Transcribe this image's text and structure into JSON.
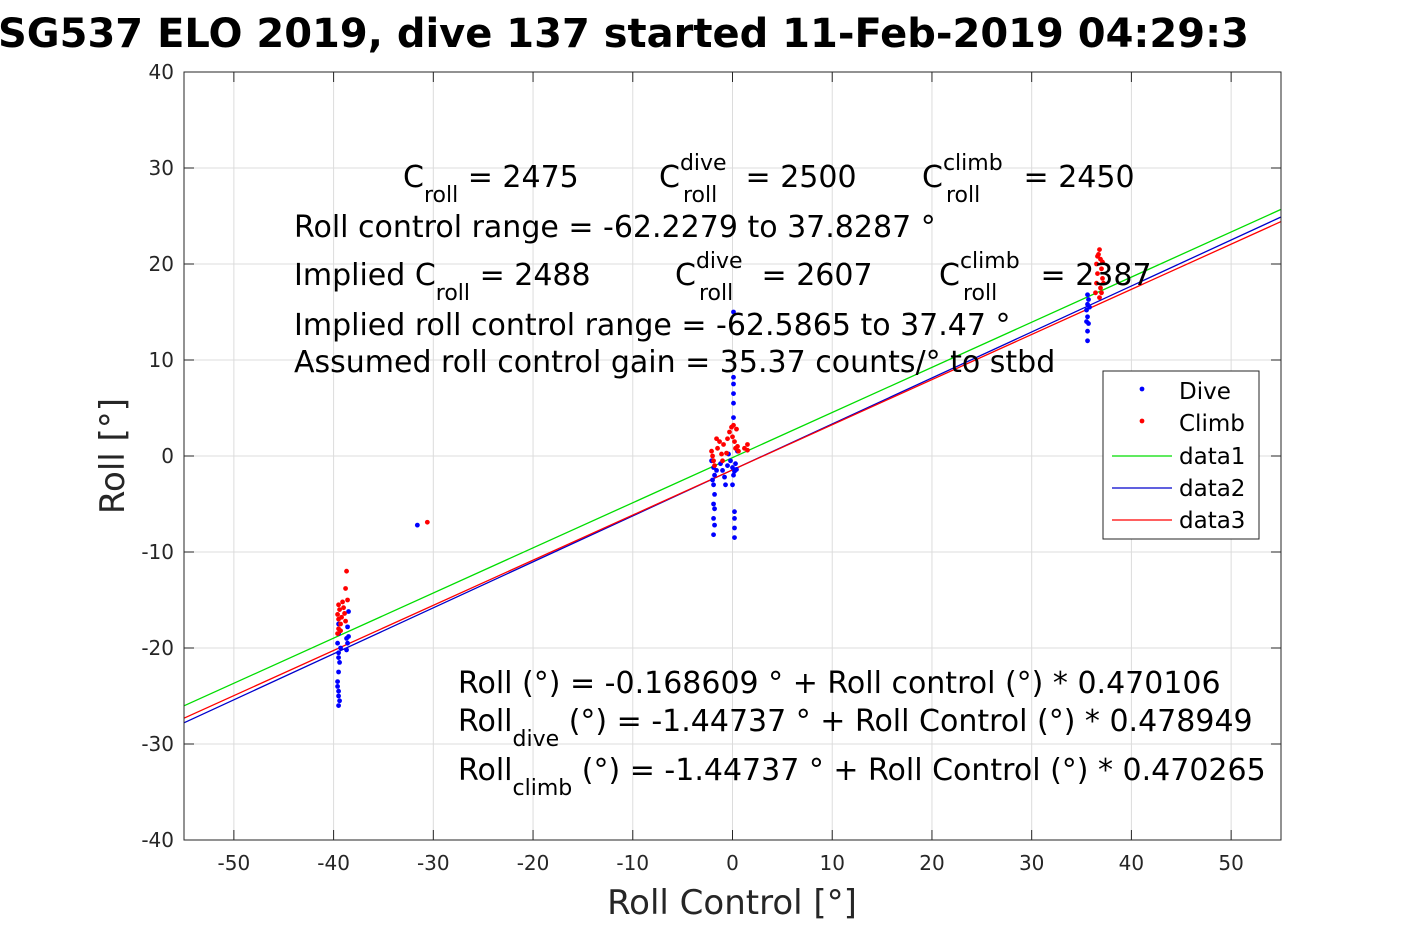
{
  "chart_data": {
    "type": "scatter",
    "title": "SG537 ELO 2019, dive 137 started 11-Feb-2019 04:29:3",
    "xlabel": "Roll Control [°]",
    "ylabel": "Roll [°]",
    "xlim": [
      -55,
      55
    ],
    "ylim": [
      -40,
      40
    ],
    "x_ticks": [
      -50,
      -40,
      -30,
      -20,
      -10,
      0,
      10,
      20,
      30,
      40,
      50
    ],
    "y_ticks": [
      -40,
      -30,
      -20,
      -10,
      0,
      10,
      20,
      30,
      40
    ],
    "grid": true,
    "legend_position": "right",
    "legend": [
      "Dive",
      "Climb",
      "data1",
      "data2",
      "data3"
    ],
    "colors": {
      "dive": "#0000ff",
      "climb": "#ff0000",
      "data1": "#00dd00",
      "data2": "#0000cc",
      "data3": "#ff0000",
      "axes": "#262626",
      "grid": "#dcdcdc"
    },
    "series": [
      {
        "name": "Dive",
        "kind": "points",
        "points": [
          [
            -39.5,
            -17.5
          ],
          [
            -39.5,
            -18.5
          ],
          [
            -39.6,
            -19.5
          ],
          [
            -39.5,
            -20.5
          ],
          [
            -39.4,
            -21.5
          ],
          [
            -39.5,
            -22.5
          ],
          [
            -39.6,
            -23.5
          ],
          [
            -39.5,
            -24.5
          ],
          [
            -39.5,
            -25.0
          ],
          [
            -39.4,
            -25.5
          ],
          [
            -39.5,
            -26.0
          ],
          [
            -39.6,
            -24.0
          ],
          [
            -39.3,
            -20.0
          ],
          [
            -39.5,
            -21.0
          ],
          [
            -38.6,
            -19.5
          ],
          [
            -38.5,
            -18.8
          ],
          [
            -38.7,
            -20.2
          ],
          [
            -38.6,
            -17.8
          ],
          [
            -38.5,
            -16.2
          ],
          [
            -38.7,
            -19.0
          ],
          [
            -31.6,
            -7.2
          ],
          [
            -1.9,
            -1.2
          ],
          [
            -1.8,
            -2.0
          ],
          [
            -1.9,
            -3.0
          ],
          [
            -1.8,
            -4.0
          ],
          [
            -1.9,
            -5.0
          ],
          [
            -1.8,
            -5.5
          ],
          [
            -1.9,
            -6.5
          ],
          [
            -1.8,
            -7.2
          ],
          [
            -1.9,
            -8.2
          ],
          [
            -2.1,
            -0.5
          ],
          [
            -1.6,
            -1.5
          ],
          [
            -2.0,
            -2.5
          ],
          [
            -1.2,
            -0.8
          ],
          [
            -1.0,
            -1.5
          ],
          [
            -0.8,
            -2.2
          ],
          [
            -0.7,
            -3.0
          ],
          [
            -0.5,
            -1.0
          ],
          [
            -0.2,
            -0.5
          ],
          [
            0.0,
            -1.2
          ],
          [
            0.1,
            -2.0
          ],
          [
            0.0,
            -3.0
          ],
          [
            0.2,
            -1.6
          ],
          [
            0.3,
            -0.8
          ],
          [
            0.4,
            -1.4
          ],
          [
            0.1,
            4.0
          ],
          [
            0.1,
            5.5
          ],
          [
            0.1,
            6.5
          ],
          [
            0.1,
            7.5
          ],
          [
            0.1,
            8.2
          ],
          [
            0.1,
            15.0
          ],
          [
            0.2,
            -5.8
          ],
          [
            0.2,
            -6.5
          ],
          [
            0.2,
            -7.5
          ],
          [
            0.2,
            -8.5
          ],
          [
            0.5,
            0.5
          ],
          [
            -0.4,
            0.2
          ],
          [
            35.6,
            12.0
          ],
          [
            35.6,
            13.0
          ],
          [
            35.7,
            13.8
          ],
          [
            35.6,
            14.5
          ],
          [
            35.5,
            15.2
          ],
          [
            35.6,
            15.8
          ],
          [
            35.7,
            16.3
          ],
          [
            35.6,
            16.8
          ],
          [
            35.8,
            15.5
          ],
          [
            35.5,
            14.0
          ]
        ]
      },
      {
        "name": "Climb",
        "kind": "points",
        "points": [
          [
            -39.5,
            -15.5
          ],
          [
            -39.4,
            -16.0
          ],
          [
            -39.6,
            -16.5
          ],
          [
            -39.5,
            -17.0
          ],
          [
            -39.3,
            -17.5
          ],
          [
            -39.5,
            -18.0
          ],
          [
            -39.6,
            -18.5
          ],
          [
            -39.2,
            -16.8
          ],
          [
            -39.0,
            -15.8
          ],
          [
            -38.9,
            -16.4
          ],
          [
            -38.8,
            -17.2
          ],
          [
            -39.1,
            -15.2
          ],
          [
            -38.8,
            -13.8
          ],
          [
            -38.7,
            -12.0
          ],
          [
            -38.6,
            -15.0
          ],
          [
            -39.3,
            -18.2
          ],
          [
            -30.6,
            -6.9
          ],
          [
            -2.0,
            0.0
          ],
          [
            -1.9,
            -0.5
          ],
          [
            -2.1,
            0.5
          ],
          [
            -1.8,
            -1.0
          ],
          [
            -1.5,
            0.8
          ],
          [
            -1.3,
            1.5
          ],
          [
            -1.1,
            0.2
          ],
          [
            -0.9,
            1.2
          ],
          [
            -0.5,
            1.8
          ],
          [
            -0.3,
            2.5
          ],
          [
            -0.1,
            3.0
          ],
          [
            0.0,
            2.0
          ],
          [
            0.2,
            1.5
          ],
          [
            0.3,
            0.8
          ],
          [
            0.4,
            2.8
          ],
          [
            0.5,
            1.0
          ],
          [
            -1.6,
            1.8
          ],
          [
            -1.0,
            -0.5
          ],
          [
            0.6,
            0.5
          ],
          [
            1.2,
            0.8
          ],
          [
            1.5,
            1.2
          ],
          [
            1.5,
            0.6
          ],
          [
            -0.6,
            0.3
          ],
          [
            0.1,
            3.2
          ],
          [
            36.4,
            17.0
          ],
          [
            36.5,
            18.0
          ],
          [
            36.6,
            19.0
          ],
          [
            36.5,
            20.0
          ],
          [
            36.7,
            21.0
          ],
          [
            36.8,
            21.5
          ],
          [
            36.9,
            20.5
          ],
          [
            37.0,
            19.5
          ],
          [
            37.1,
            18.5
          ],
          [
            36.9,
            17.5
          ],
          [
            37.0,
            17.0
          ],
          [
            36.8,
            16.5
          ],
          [
            37.2,
            18.0
          ],
          [
            36.6,
            20.8
          ],
          [
            37.1,
            20.2
          ]
        ]
      },
      {
        "name": "data1",
        "kind": "line",
        "intercept": -0.168609,
        "slope": 0.470106
      },
      {
        "name": "data2",
        "kind": "line",
        "intercept": -1.44737,
        "slope": 0.478949
      },
      {
        "name": "data3",
        "kind": "line",
        "intercept": -1.44737,
        "slope": 0.470265
      }
    ],
    "annotations": {
      "c_roll": {
        "base": "C",
        "sub": "roll",
        "rest": " = 2475"
      },
      "c_roll_dive": {
        "base": "C",
        "sub": "roll",
        "sup": "dive",
        "rest": " = 2500"
      },
      "c_roll_climb": {
        "base": "C",
        "sub": "roll",
        "sup": "climb",
        "rest": " = 2450"
      },
      "range_line": "Roll control range = -62.2279 to 37.8287 °",
      "implied_c_roll": {
        "prefix": "Implied C",
        "sub": "roll",
        "rest": " = 2488"
      },
      "implied_c_roll_dive": {
        "base": "C",
        "sub": "roll",
        "sup": "dive",
        "rest": " = 2607"
      },
      "implied_c_roll_climb": {
        "base": "C",
        "sub": "roll",
        "sup": "climb",
        "rest": " = 2387"
      },
      "implied_range_line": "Implied roll control range = -62.5865 to 37.47 °",
      "gain_line": "Assumed roll control gain = 35.37 counts/° to stbd",
      "fit_all": "Roll (°) = -0.168609 ° + Roll control (°) * 0.470106",
      "fit_dive": {
        "base": "Roll",
        "sub": "dive",
        "rest": " (°) = -1.44737 ° + Roll Control (°) * 0.478949"
      },
      "fit_climb": {
        "base": "Roll",
        "sub": "climb",
        "rest": " (°) = -1.44737 ° + Roll Control (°) * 0.470265"
      }
    }
  }
}
